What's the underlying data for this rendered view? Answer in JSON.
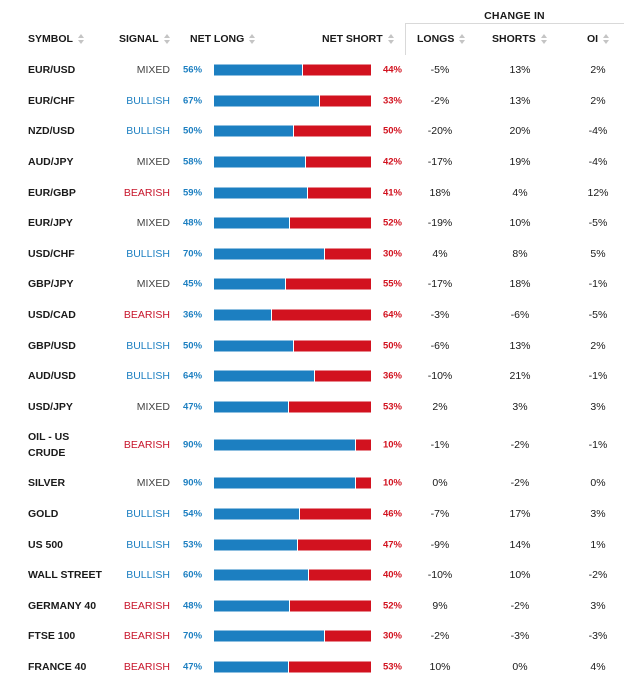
{
  "group_header": "CHANGE IN",
  "columns": {
    "symbol": "SYMBOL",
    "signal": "SIGNAL",
    "net_long": "NET LONG",
    "net_short": "NET SHORT",
    "longs": "LONGS",
    "shorts": "SHORTS",
    "oi": "OI"
  },
  "colors": {
    "long": "#1c7fc1",
    "short": "#d2121f",
    "bullish": "#1c7fc1",
    "bearish": "#c7142a",
    "mixed": "#444444"
  },
  "rows": [
    {
      "symbol": "EUR/USD",
      "signal": "MIXED",
      "long": 56,
      "net_long": "56%",
      "net_short": "44%",
      "longs": "-5%",
      "shorts": "13%",
      "oi": "2%"
    },
    {
      "symbol": "EUR/CHF",
      "signal": "BULLISH",
      "long": 67,
      "net_long": "67%",
      "net_short": "33%",
      "longs": "-2%",
      "shorts": "13%",
      "oi": "2%"
    },
    {
      "symbol": "NZD/USD",
      "signal": "BULLISH",
      "long": 50,
      "net_long": "50%",
      "net_short": "50%",
      "longs": "-20%",
      "shorts": "20%",
      "oi": "-4%"
    },
    {
      "symbol": "AUD/JPY",
      "signal": "MIXED",
      "long": 58,
      "net_long": "58%",
      "net_short": "42%",
      "longs": "-17%",
      "shorts": "19%",
      "oi": "-4%"
    },
    {
      "symbol": "EUR/GBP",
      "signal": "BEARISH",
      "long": 59,
      "net_long": "59%",
      "net_short": "41%",
      "longs": "18%",
      "shorts": "4%",
      "oi": "12%"
    },
    {
      "symbol": "EUR/JPY",
      "signal": "MIXED",
      "long": 48,
      "net_long": "48%",
      "net_short": "52%",
      "longs": "-19%",
      "shorts": "10%",
      "oi": "-5%"
    },
    {
      "symbol": "USD/CHF",
      "signal": "BULLISH",
      "long": 70,
      "net_long": "70%",
      "net_short": "30%",
      "longs": "4%",
      "shorts": "8%",
      "oi": "5%"
    },
    {
      "symbol": "GBP/JPY",
      "signal": "MIXED",
      "long": 45,
      "net_long": "45%",
      "net_short": "55%",
      "longs": "-17%",
      "shorts": "18%",
      "oi": "-1%"
    },
    {
      "symbol": "USD/CAD",
      "signal": "BEARISH",
      "long": 36,
      "net_long": "36%",
      "net_short": "64%",
      "longs": "-3%",
      "shorts": "-6%",
      "oi": "-5%"
    },
    {
      "symbol": "GBP/USD",
      "signal": "BULLISH",
      "long": 50,
      "net_long": "50%",
      "net_short": "50%",
      "longs": "-6%",
      "shorts": "13%",
      "oi": "2%"
    },
    {
      "symbol": "AUD/USD",
      "signal": "BULLISH",
      "long": 64,
      "net_long": "64%",
      "net_short": "36%",
      "longs": "-10%",
      "shorts": "21%",
      "oi": "-1%"
    },
    {
      "symbol": "USD/JPY",
      "signal": "MIXED",
      "long": 47,
      "net_long": "47%",
      "net_short": "53%",
      "longs": "2%",
      "shorts": "3%",
      "oi": "3%"
    },
    {
      "symbol": "OIL - US CRUDE",
      "symbol_line1": "OIL - US",
      "symbol_line2": "CRUDE",
      "signal": "BEARISH",
      "long": 90,
      "net_long": "90%",
      "net_short": "10%",
      "longs": "-1%",
      "shorts": "-2%",
      "oi": "-1%"
    },
    {
      "symbol": "SILVER",
      "signal": "MIXED",
      "long": 90,
      "net_long": "90%",
      "net_short": "10%",
      "longs": "0%",
      "shorts": "-2%",
      "oi": "0%"
    },
    {
      "symbol": "GOLD",
      "signal": "BULLISH",
      "long": 54,
      "net_long": "54%",
      "net_short": "46%",
      "longs": "-7%",
      "shorts": "17%",
      "oi": "3%"
    },
    {
      "symbol": "US 500",
      "signal": "BULLISH",
      "long": 53,
      "net_long": "53%",
      "net_short": "47%",
      "longs": "-9%",
      "shorts": "14%",
      "oi": "1%"
    },
    {
      "symbol": "WALL STREET",
      "signal": "BULLISH",
      "long": 60,
      "net_long": "60%",
      "net_short": "40%",
      "longs": "-10%",
      "shorts": "10%",
      "oi": "-2%"
    },
    {
      "symbol": "GERMANY 40",
      "signal": "BEARISH",
      "long": 48,
      "net_long": "48%",
      "net_short": "52%",
      "longs": "9%",
      "shorts": "-2%",
      "oi": "3%"
    },
    {
      "symbol": "FTSE 100",
      "signal": "BEARISH",
      "long": 70,
      "net_long": "70%",
      "net_short": "30%",
      "longs": "-2%",
      "shorts": "-3%",
      "oi": "-3%"
    },
    {
      "symbol": "FRANCE 40",
      "signal": "BEARISH",
      "long": 47,
      "net_long": "47%",
      "net_short": "53%",
      "longs": "10%",
      "shorts": "0%",
      "oi": "4%"
    }
  ]
}
